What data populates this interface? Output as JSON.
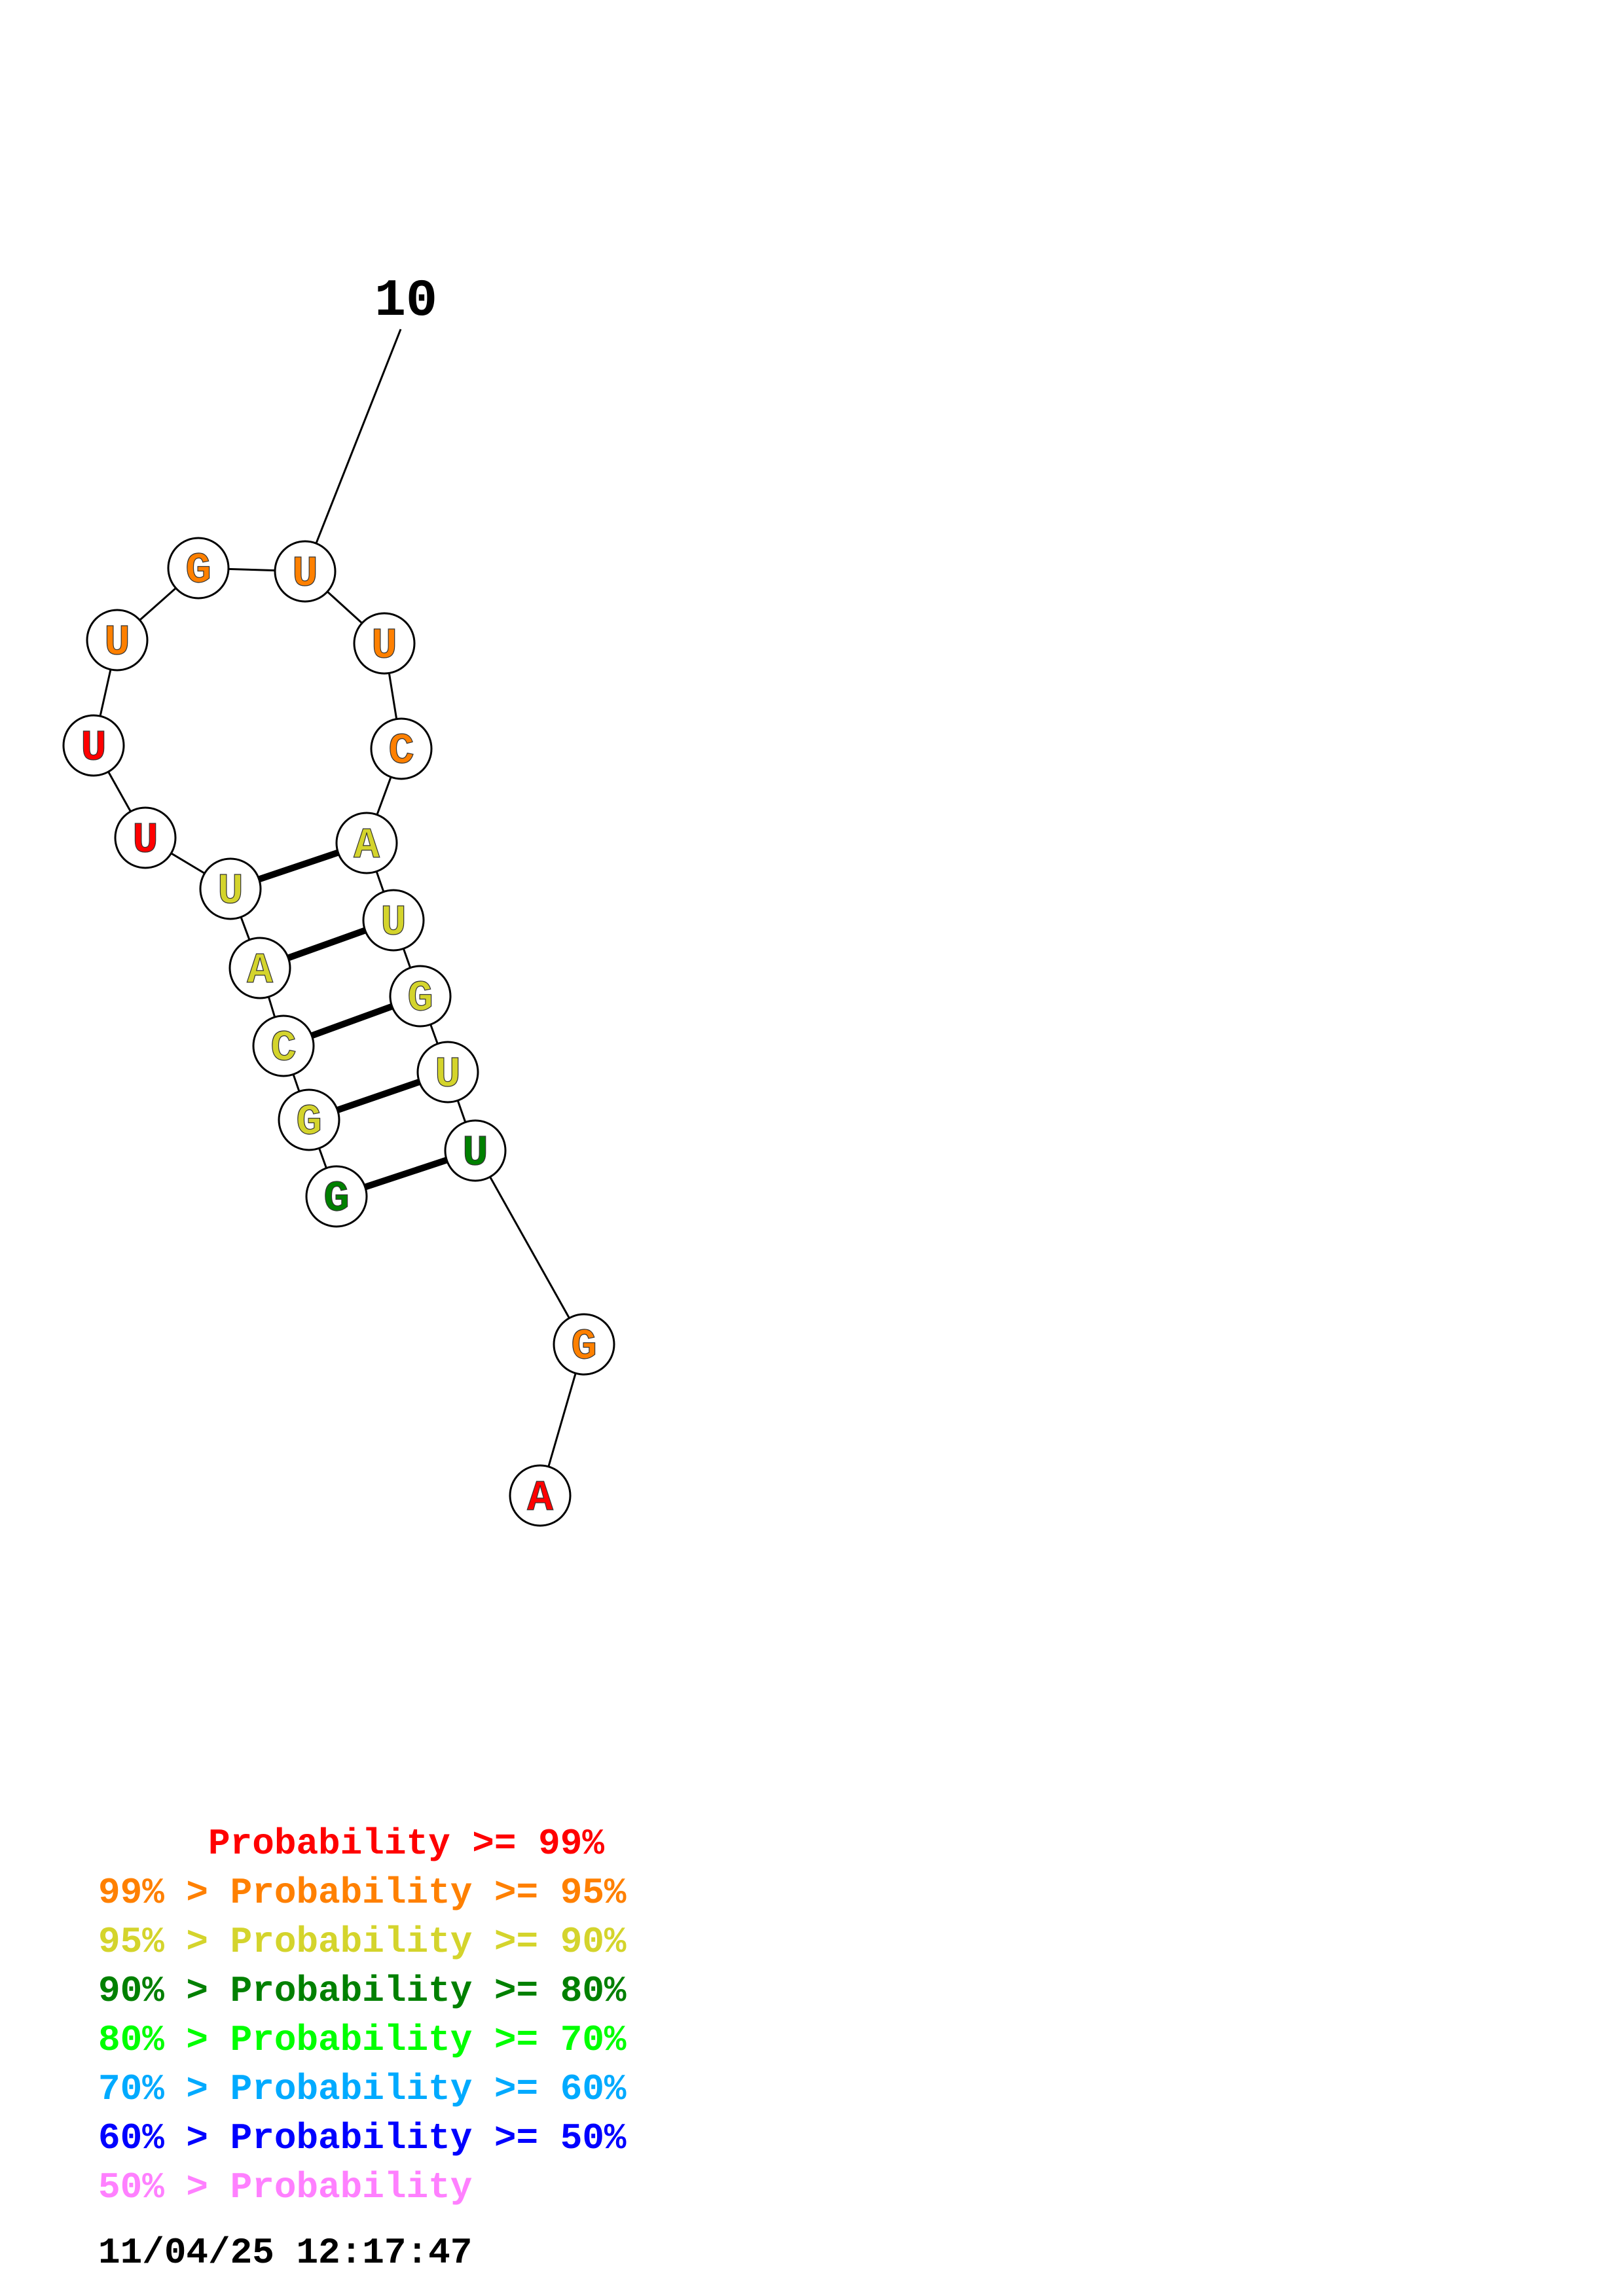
{
  "structure": {
    "position_label": "10",
    "nucleotides": [
      {
        "base": "U",
        "color": "#ff8000"
      },
      {
        "base": "G",
        "color": "#ff8000"
      },
      {
        "base": "U",
        "color": "#ff8000"
      },
      {
        "base": "U",
        "color": "#ff0000"
      },
      {
        "base": "U",
        "color": "#ff0000"
      },
      {
        "base": "U",
        "color": "#d4d42c"
      },
      {
        "base": "A",
        "color": "#d4d42c"
      },
      {
        "base": "C",
        "color": "#d4d42c"
      },
      {
        "base": "G",
        "color": "#d4d42c"
      },
      {
        "base": "G",
        "color": "#008000"
      },
      {
        "base": "U",
        "color": "#ff8000"
      },
      {
        "base": "C",
        "color": "#ff8000"
      },
      {
        "base": "A",
        "color": "#d4d42c"
      },
      {
        "base": "U",
        "color": "#d4d42c"
      },
      {
        "base": "G",
        "color": "#d4d42c"
      },
      {
        "base": "U",
        "color": "#d4d42c"
      },
      {
        "base": "U",
        "color": "#008000"
      },
      {
        "base": "G",
        "color": "#ff8000"
      },
      {
        "base": "A",
        "color": "#ff0000"
      }
    ],
    "base_pairs": [
      [
        5,
        12
      ],
      [
        6,
        13
      ],
      [
        7,
        14
      ],
      [
        8,
        15
      ],
      [
        9,
        16
      ]
    ]
  },
  "legend": [
    {
      "text": "     Probability >= 99%",
      "color": "#ff0000"
    },
    {
      "text": "99% > Probability >= 95%",
      "color": "#ff8000"
    },
    {
      "text": "95% > Probability >= 90%",
      "color": "#d4d42c"
    },
    {
      "text": "90% > Probability >= 80%",
      "color": "#008000"
    },
    {
      "text": "80% > Probability >= 70%",
      "color": "#00ff00"
    },
    {
      "text": "70% > Probability >= 60%",
      "color": "#00aaff"
    },
    {
      "text": "60% > Probability >= 50%",
      "color": "#0000ff"
    },
    {
      "text": "50% > Probability",
      "color": "#ff80ff"
    }
  ],
  "timestamp": "11/04/25 12:17:47"
}
